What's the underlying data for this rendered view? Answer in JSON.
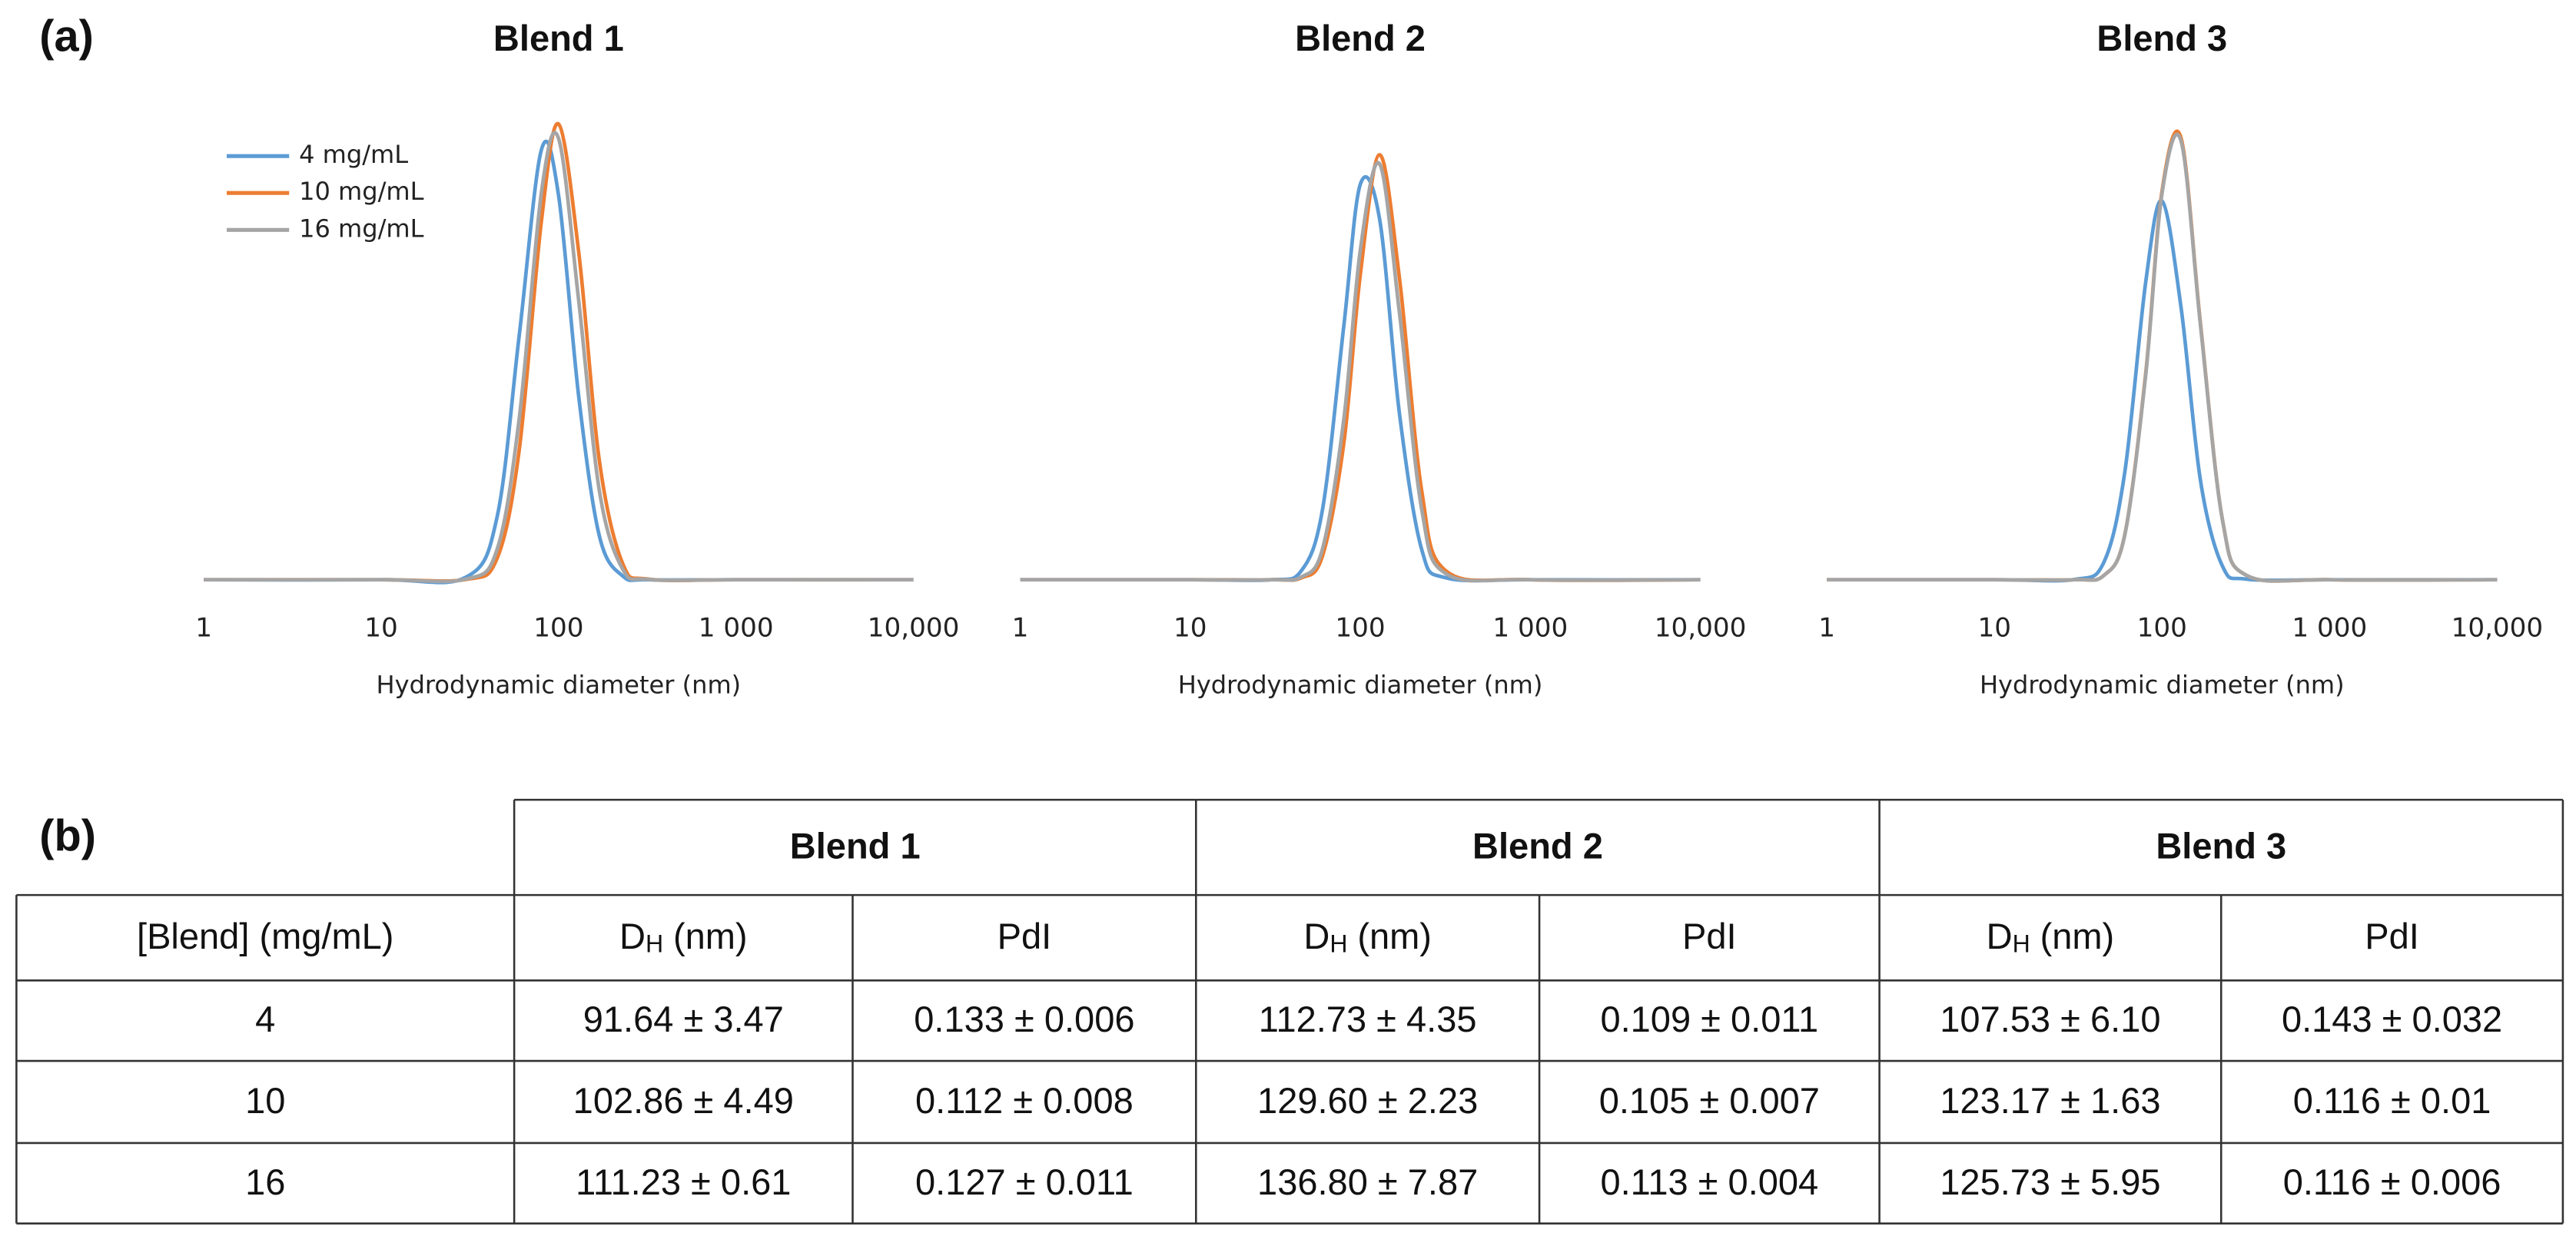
{
  "panel_a_label": "(a)",
  "chart_data": [
    {
      "type": "line",
      "title": "Blend 1",
      "xlabel": "Hydrodynamic diameter (nm)",
      "xscale": "log",
      "x": [
        1,
        10,
        30,
        45,
        60,
        80,
        100,
        130,
        170,
        230,
        320,
        1000,
        10000
      ],
      "series": [
        {
          "name": "4 mg/mL",
          "color": "#5b9bd5",
          "values": [
            0,
            0,
            0.08,
            2.03,
            7.93,
            13.96,
            12.48,
            5.93,
            1.41,
            0.12,
            0,
            0,
            0
          ]
        },
        {
          "name": "10 mg/mL",
          "color": "#ed7d31",
          "values": [
            0,
            0,
            0.01,
            0.69,
            4.21,
            11.64,
            14.8,
            10.62,
            3.84,
            0.52,
            0.02,
            0,
            0
          ]
        },
        {
          "name": "16 mg/mL",
          "color": "#a5a5a5",
          "values": [
            0,
            0,
            0.02,
            0.98,
            5.23,
            12.57,
            14.33,
            9.04,
            2.87,
            0.34,
            0.01,
            0,
            0
          ]
        }
      ],
      "xlim": [
        1,
        10000
      ],
      "ylim": [
        0,
        16
      ],
      "xticks": [
        1,
        10,
        100,
        {
          "value": 1000,
          "label": "1 000"
        },
        {
          "value": 10000,
          "label": "10,000"
        }
      ],
      "legend": "upper left"
    },
    {
      "type": "line",
      "title": "Blend 2",
      "xlabel": "Hydrodynamic diameter (nm)",
      "xscale": "log",
      "x": [
        1,
        10,
        30,
        45,
        60,
        80,
        100,
        130,
        170,
        230,
        320,
        1000,
        10000
      ],
      "series": [
        {
          "color": "#5b9bd5",
          "values": [
            0,
            0,
            0,
            0.29,
            2.29,
            8.24,
            12.84,
            11.7,
            5.39,
            0.97,
            0.06,
            0,
            0
          ]
        },
        {
          "color": "#ed7d31",
          "values": [
            0,
            0,
            0,
            0.06,
            0.78,
            4.43,
            9.9,
            13.8,
            9.79,
            2.87,
            0.28,
            0,
            0
          ]
        },
        {
          "color": "#a5a5a5",
          "values": [
            0,
            0,
            0,
            0.09,
            1.01,
            5.21,
            10.7,
            13.5,
            8.66,
            2.27,
            0.19,
            0,
            0
          ]
        }
      ],
      "xlim": [
        1,
        10000
      ],
      "ylim": [
        0,
        16
      ],
      "xticks": [
        1,
        10,
        100,
        {
          "value": 1000,
          "label": "1 000"
        },
        {
          "value": 10000,
          "label": "10,000"
        }
      ]
    },
    {
      "type": "line",
      "title": "Blend 3",
      "xlabel": "Hydrodynamic diameter (nm)",
      "xscale": "log",
      "x": [
        1,
        10,
        30,
        45,
        60,
        80,
        100,
        130,
        170,
        230,
        320,
        1000,
        10000
      ],
      "series": [
        {
          "color": "#5b9bd5",
          "values": [
            0,
            0,
            0.01,
            0.57,
            3.5,
            9.68,
            12.3,
            8.83,
            3.19,
            0.43,
            0.02,
            0,
            0
          ]
        },
        {
          "color": "#ed7d31",
          "values": [
            0,
            0,
            0,
            0.14,
            1.47,
            6.72,
            12.62,
            14.34,
            8.27,
            1.92,
            0.14,
            0,
            0
          ]
        },
        {
          "color": "#a5a5a5",
          "values": [
            0,
            0,
            0,
            0.14,
            1.46,
            6.67,
            12.54,
            14.24,
            8.22,
            1.91,
            0.14,
            0,
            0
          ]
        }
      ],
      "xlim": [
        1,
        10000
      ],
      "ylim": [
        0,
        16
      ],
      "xticks": [
        1,
        10,
        100,
        {
          "value": 1000,
          "label": "1 000"
        },
        {
          "value": 10000,
          "label": "10,000"
        }
      ]
    }
  ],
  "panel_b_label": "(b)",
  "table": {
    "group_headers": [
      "Blend 1",
      "Blend 2",
      "Blend 3"
    ],
    "subheaders": [
      "[Blend] (mg/mL)",
      {
        "symbol": "D",
        "subscript": "H",
        "unit": "(nm)"
      },
      "PdI",
      {
        "symbol": "D",
        "subscript": "H",
        "unit": "(nm)"
      },
      "PdI",
      {
        "symbol": "D",
        "subscript": "H",
        "unit": "(nm)"
      },
      "PdI"
    ],
    "rows": [
      [
        "4",
        "91.64 ± 3.47",
        "0.133 ± 0.006",
        "112.73 ± 4.35",
        "0.109 ± 0.011",
        "107.53 ± 6.10",
        "0.143 ± 0.032"
      ],
      [
        "10",
        "102.86 ± 4.49",
        "0.112 ± 0.008",
        "129.60 ± 2.23",
        "0.105 ± 0.007",
        "123.17 ± 1.63",
        "0.116 ± 0.01"
      ],
      [
        "16",
        "111.23 ± 0.61",
        "0.127 ± 0.011",
        "136.80 ± 7.87",
        "0.113 ± 0.004",
        "125.73 ± 5.95",
        "0.116 ± 0.006"
      ]
    ]
  }
}
